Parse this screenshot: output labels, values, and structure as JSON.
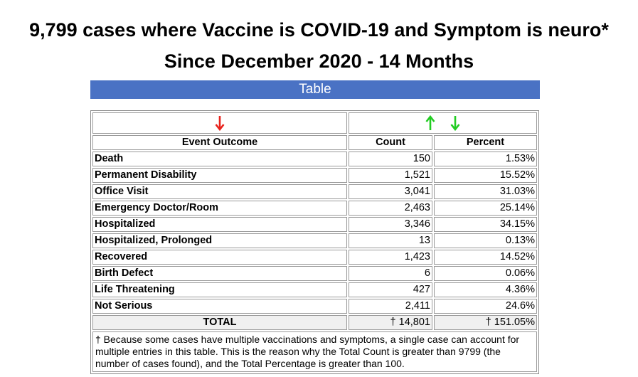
{
  "title": "9,799 cases where Vaccine is COVID-19 and Symptom is neuro*",
  "subtitle": "Since December 2020 - 14 Months",
  "banner": "Table",
  "colors": {
    "banner": "#4a72c4",
    "arrow_red": "#e8231c",
    "arrow_green": "#22cc22"
  },
  "headers": {
    "outcome": "Event Outcome",
    "count": "Count",
    "percent": "Percent"
  },
  "rows": [
    {
      "outcome": "Death",
      "count": "150",
      "percent": "1.53%"
    },
    {
      "outcome": "Permanent Disability",
      "count": "1,521",
      "percent": "15.52%"
    },
    {
      "outcome": "Office Visit",
      "count": "3,041",
      "percent": "31.03%"
    },
    {
      "outcome": "Emergency Doctor/Room",
      "count": "2,463",
      "percent": "25.14%"
    },
    {
      "outcome": "Hospitalized",
      "count": "3,346",
      "percent": "34.15%"
    },
    {
      "outcome": "Hospitalized, Prolonged",
      "count": "13",
      "percent": "0.13%"
    },
    {
      "outcome": "Recovered",
      "count": "1,423",
      "percent": "14.52%"
    },
    {
      "outcome": "Birth Defect",
      "count": "6",
      "percent": "0.06%"
    },
    {
      "outcome": "Life Threatening",
      "count": "427",
      "percent": "4.36%"
    },
    {
      "outcome": "Not Serious",
      "count": "2,411",
      "percent": "24.6%"
    }
  ],
  "total": {
    "label": "TOTAL",
    "count": "† 14,801",
    "percent": "† 151.05%"
  },
  "footnote": "† Because some cases have multiple vaccinations and symptoms, a single case can account for multiple entries in this table. This is the reason why the Total Count is greater than 9799 (the number of cases found), and the Total Percentage is greater than 100."
}
